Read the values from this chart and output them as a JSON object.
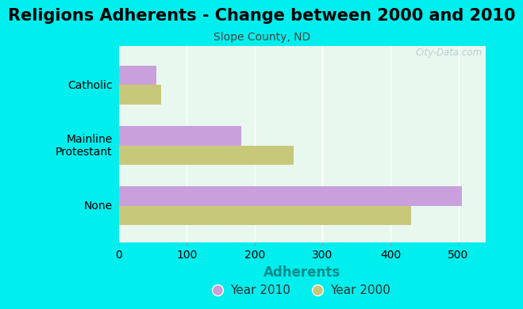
{
  "title": "Religions Adherents - Change between 2000 and 2010",
  "subtitle": "Slope County, ND",
  "categories": [
    "None",
    "Mainline\nProtestant",
    "Catholic"
  ],
  "values_2010": [
    505,
    180,
    55
  ],
  "values_2000": [
    430,
    257,
    62
  ],
  "color_2010": "#c9a0dc",
  "color_2000": "#c8c87a",
  "xlabel": "Adherents",
  "xlabel_color": "#008b8b",
  "background_outer": "#00eeee",
  "background_inner": "#e8f8ee",
  "xlim": [
    0,
    540
  ],
  "xticks": [
    0,
    100,
    200,
    300,
    400,
    500
  ],
  "bar_height": 0.32,
  "title_fontsize": 15,
  "subtitle_fontsize": 10,
  "xlabel_fontsize": 12,
  "legend_fontsize": 11,
  "ytick_label_fontsize": 10,
  "xtick_label_fontsize": 10,
  "watermark": "City-Data.com",
  "grid_color": "#ffffff",
  "ytick_labels": [
    "None",
    "Mainline\nProtestant",
    "Catholic"
  ]
}
